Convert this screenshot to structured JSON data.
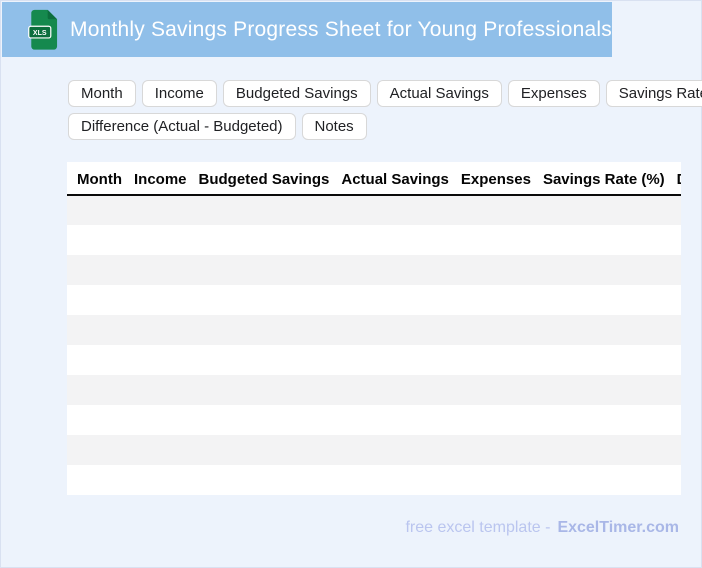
{
  "header": {
    "title": "Monthly Savings Progress Sheet for Young Professionals",
    "file_icon_label": "XLS",
    "colors": {
      "bar": "#90bfe9",
      "title_text": "#ffffff",
      "icon_green": "#15894e",
      "icon_badge_green": "#0c6e3d"
    }
  },
  "chips": {
    "row1": [
      "Month",
      "Income",
      "Budgeted Savings",
      "Actual Savings",
      "Expenses",
      "Savings Rate (%)"
    ],
    "row2": [
      "Difference (Actual - Budgeted)",
      "Notes"
    ]
  },
  "table": {
    "columns": [
      "Month",
      "Income",
      "Budgeted Savings",
      "Actual Savings",
      "Expenses",
      "Savings Rate (%)",
      "Difference (Actual - Budgeted)"
    ],
    "row_count": 10,
    "colors": {
      "stripe": "#f3f3f4",
      "header_border": "#0a0a0a"
    }
  },
  "footer": {
    "text": "free excel template -",
    "brand": "ExcelTimer.com"
  },
  "page": {
    "background": "#edf3fc",
    "border": "#d9e1f1"
  }
}
